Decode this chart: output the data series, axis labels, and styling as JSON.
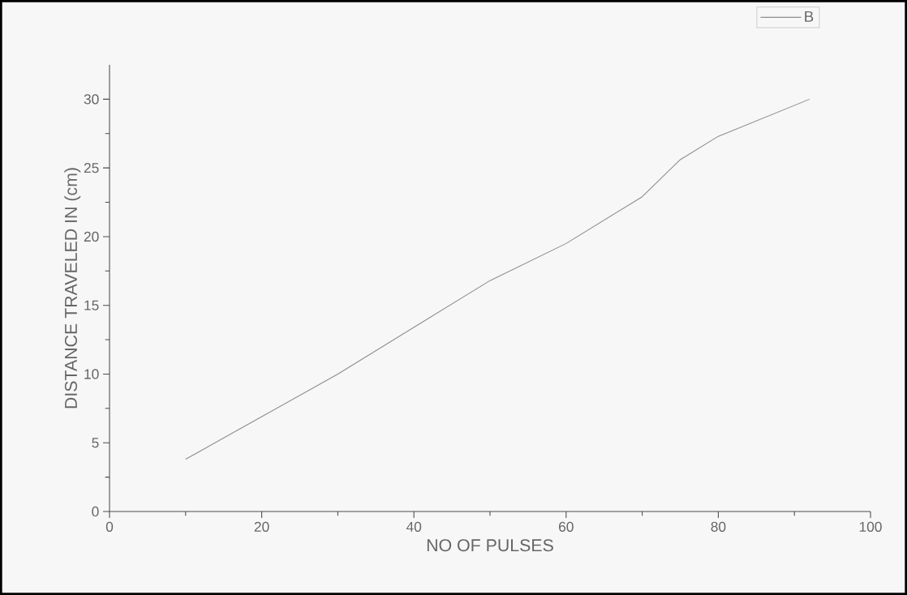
{
  "chart_data": {
    "type": "line",
    "xlabel": "NO OF PULSES",
    "ylabel": "DISTANCE TRAVELED IN (cm)",
    "x": [
      10,
      20,
      30,
      40,
      50,
      60,
      70,
      75,
      80,
      92
    ],
    "series": [
      {
        "name": "B",
        "color": "#8c8c8c",
        "values": [
          3.8,
          6.9,
          10,
          13.4,
          16.8,
          19.5,
          22.9,
          25.6,
          27.3,
          30
        ]
      }
    ],
    "xlim": [
      0,
      100
    ],
    "ylim": [
      0,
      32.5
    ],
    "xticks": [
      0,
      20,
      40,
      60,
      80,
      100
    ],
    "yticks": [
      0,
      5,
      10,
      15,
      20,
      25,
      30
    ],
    "grid": false,
    "legend": "top right",
    "marker": "none",
    "line_style": "solid"
  }
}
